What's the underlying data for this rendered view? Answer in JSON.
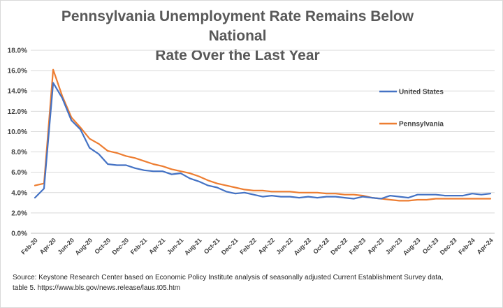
{
  "title_line1": "Pennsylvania Unemployment Rate Remains Below National",
  "title_line2": "Rate Over the Last Year",
  "source_line1": "Source: Keystone Research Center  based on Economic Policy Institute analysis of seasonally adjusted Current Establishment Survey data,",
  "source_line2": "table 5. https://www.bls.gov/news.release/laus.t05.htm",
  "colors": {
    "us": "#4472c4",
    "pa": "#ed7d31",
    "grid": "#d9d9d9"
  },
  "chart_data": {
    "type": "line",
    "title": "Pennsylvania Unemployment Rate Remains Below National Rate Over the Last Year",
    "xlabel": "",
    "ylabel": "",
    "ylim": [
      0,
      18
    ],
    "y_ticks": [
      "0.0%",
      "2.0%",
      "4.0%",
      "6.0%",
      "8.0%",
      "10.0%",
      "12.0%",
      "14.0%",
      "16.0%",
      "18.0%"
    ],
    "x_tick_labels": [
      "Feb-20",
      "Apr-20",
      "Jun-20",
      "Aug-20",
      "Oct-20",
      "Dec-20",
      "Feb-21",
      "Apr-21",
      "Jun-21",
      "Aug-21",
      "Oct-21",
      "Dec-21",
      "Feb-22",
      "Apr-22",
      "Jun-22",
      "Aug-22",
      "Oct-22",
      "Dec-22",
      "Feb-23",
      "Apr-23",
      "Jun-23",
      "Aug-23",
      "Oct-23",
      "Dec-23",
      "Feb-24",
      "Apr-24"
    ],
    "grid": "horizontal",
    "legend_position": "right",
    "months": [
      "Feb-20",
      "Mar-20",
      "Apr-20",
      "May-20",
      "Jun-20",
      "Jul-20",
      "Aug-20",
      "Sep-20",
      "Oct-20",
      "Nov-20",
      "Dec-20",
      "Jan-21",
      "Feb-21",
      "Mar-21",
      "Apr-21",
      "May-21",
      "Jun-21",
      "Jul-21",
      "Aug-21",
      "Sep-21",
      "Oct-21",
      "Nov-21",
      "Dec-21",
      "Jan-22",
      "Feb-22",
      "Mar-22",
      "Apr-22",
      "May-22",
      "Jun-22",
      "Jul-22",
      "Aug-22",
      "Sep-22",
      "Oct-22",
      "Nov-22",
      "Dec-22",
      "Jan-23",
      "Feb-23",
      "Mar-23",
      "Apr-23",
      "May-23",
      "Jun-23",
      "Jul-23",
      "Aug-23",
      "Sep-23",
      "Oct-23",
      "Nov-23",
      "Dec-23",
      "Jan-24",
      "Feb-24",
      "Mar-24",
      "Apr-24"
    ],
    "series": [
      {
        "name": "United States",
        "color": "#4472c4",
        "values": [
          3.5,
          4.4,
          14.8,
          13.3,
          11.1,
          10.2,
          8.4,
          7.8,
          6.8,
          6.7,
          6.7,
          6.4,
          6.2,
          6.1,
          6.1,
          5.8,
          5.9,
          5.4,
          5.1,
          4.7,
          4.5,
          4.1,
          3.9,
          4.0,
          3.8,
          3.6,
          3.7,
          3.6,
          3.6,
          3.5,
          3.6,
          3.5,
          3.6,
          3.6,
          3.5,
          3.4,
          3.6,
          3.5,
          3.4,
          3.7,
          3.6,
          3.5,
          3.8,
          3.8,
          3.8,
          3.7,
          3.7,
          3.7,
          3.9,
          3.8,
          3.9
        ]
      },
      {
        "name": "Pennsylvania",
        "color": "#ed7d31",
        "values": [
          4.7,
          4.9,
          16.1,
          13.5,
          11.4,
          10.4,
          9.3,
          8.8,
          8.1,
          7.9,
          7.6,
          7.4,
          7.1,
          6.8,
          6.6,
          6.3,
          6.1,
          5.9,
          5.6,
          5.2,
          4.9,
          4.7,
          4.5,
          4.3,
          4.2,
          4.2,
          4.1,
          4.1,
          4.1,
          4.0,
          4.0,
          4.0,
          3.9,
          3.9,
          3.8,
          3.8,
          3.7,
          3.5,
          3.4,
          3.3,
          3.2,
          3.2,
          3.3,
          3.3,
          3.4,
          3.4,
          3.4,
          3.4,
          3.4,
          3.4,
          3.4
        ]
      }
    ]
  }
}
